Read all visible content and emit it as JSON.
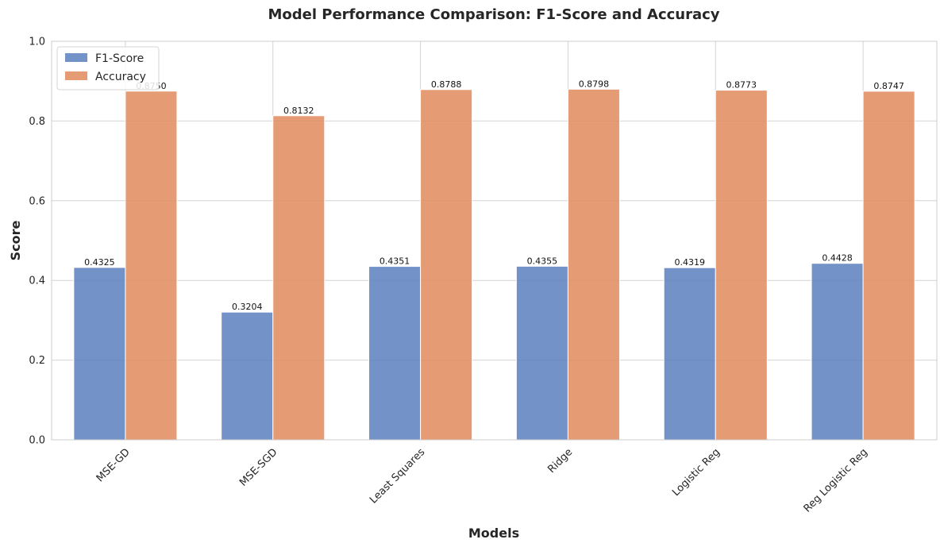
{
  "chart_data": {
    "type": "bar",
    "title": "Model Performance Comparison: F1-Score and Accuracy",
    "xlabel": "Models",
    "ylabel": "Score",
    "ylim": [
      0,
      1.0
    ],
    "yticks": [
      0.0,
      0.2,
      0.4,
      0.6,
      0.8,
      1.0
    ],
    "ytick_labels": [
      "0.0",
      "0.2",
      "0.4",
      "0.6",
      "0.8",
      "1.0"
    ],
    "grid": true,
    "legend_position": "top-left",
    "categories": [
      "MSE-GD",
      "MSE-SGD",
      "Least Squares",
      "Ridge",
      "Logistic Reg",
      "Reg Logistic Reg"
    ],
    "series": [
      {
        "name": "F1-Score",
        "color": "#5a7fbe",
        "values": [
          0.4325,
          0.3204,
          0.4351,
          0.4355,
          0.4319,
          0.4428
        ],
        "value_labels": [
          "0.4325",
          "0.3204",
          "0.4351",
          "0.4355",
          "0.4319",
          "0.4428"
        ]
      },
      {
        "name": "Accuracy",
        "color": "#e08b5c",
        "values": [
          0.875,
          0.8132,
          0.8788,
          0.8798,
          0.8773,
          0.8747
        ],
        "value_labels": [
          "0.8750",
          "0.8132",
          "0.8788",
          "0.8798",
          "0.8773",
          "0.8747"
        ]
      }
    ]
  }
}
